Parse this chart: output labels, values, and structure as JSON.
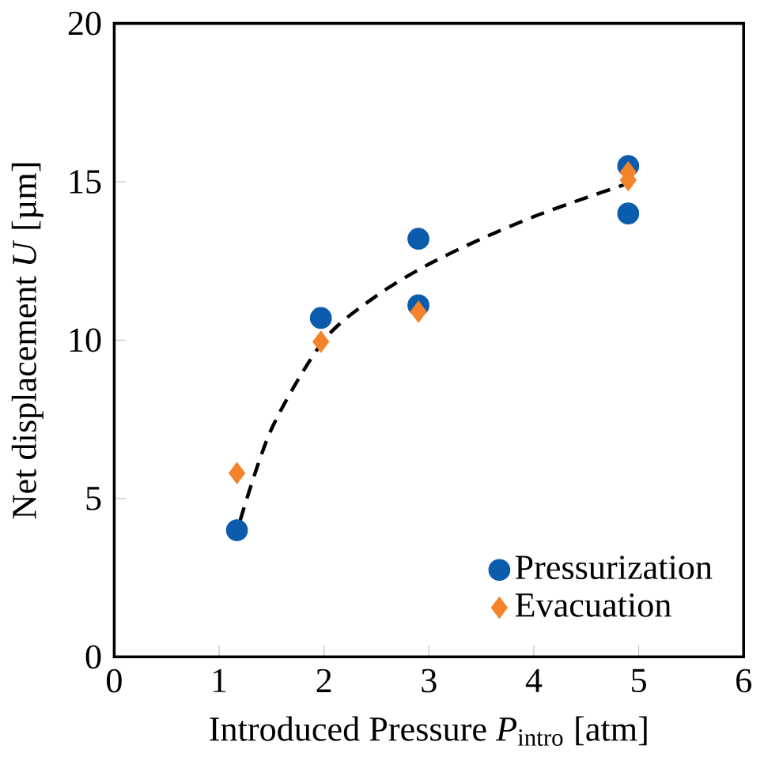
{
  "chart_data": {
    "type": "scatter",
    "xlabel": "Introduced Pressure *P*$_{intro}$ [atm]",
    "ylabel": "Net displacement *U* [µm]",
    "xlim": [
      0,
      6
    ],
    "ylim": [
      0,
      20
    ],
    "xticks": [
      0,
      1,
      2,
      3,
      4,
      5,
      6
    ],
    "yticks": [
      0,
      5,
      10,
      15,
      20
    ],
    "grid": false,
    "legend": "bottom right",
    "series": [
      {
        "name": "Pressurization",
        "color": "#0b5cad",
        "marker": "circle",
        "x": [
          1.17,
          1.97,
          2.9,
          2.9,
          4.9,
          4.9
        ],
        "values": [
          4.0,
          10.7,
          13.2,
          11.1,
          15.5,
          14.0
        ]
      },
      {
        "name": "Evacuation",
        "color": "#f5832a",
        "marker": "diamond",
        "x": [
          1.17,
          1.97,
          2.9,
          4.9,
          4.9
        ],
        "values": [
          5.8,
          9.95,
          10.9,
          15.3,
          15.05
        ]
      },
      {
        "type": "line",
        "color": "#000000",
        "marker": "none",
        "line_style": "dashed",
        "x": [
          1.2,
          1.5,
          2.0,
          2.5,
          3.0,
          3.5,
          4.0,
          4.5,
          4.9
        ],
        "values": [
          4.3,
          7.2,
          10.0,
          11.4,
          12.4,
          13.2,
          13.9,
          14.5,
          14.95
        ]
      }
    ]
  }
}
